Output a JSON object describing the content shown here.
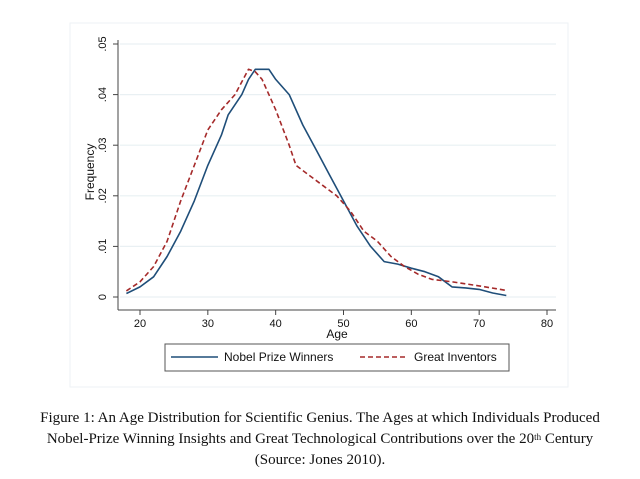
{
  "chart_data": {
    "type": "line",
    "title": "",
    "xlabel": "Age",
    "ylabel": "Frequency",
    "xlim": [
      18,
      80
    ],
    "ylim": [
      0,
      0.05
    ],
    "xticks": [
      20,
      30,
      40,
      50,
      60,
      70,
      80
    ],
    "xtick_labels": [
      "20",
      "30",
      "40",
      "50",
      "60",
      "70",
      "80"
    ],
    "yticks": [
      0,
      0.01,
      0.02,
      0.03,
      0.04,
      0.05
    ],
    "ytick_labels": [
      "0",
      ".01",
      ".02",
      ".03",
      ".04",
      ".05"
    ],
    "grid": "horizontal",
    "legend_position": "bottom",
    "series": [
      {
        "name": "Nobel Prize Winners",
        "style": "solid",
        "color": "#1f4e79",
        "x": [
          18,
          20,
          22,
          24,
          26,
          28,
          30,
          32,
          33,
          35,
          36,
          37,
          39,
          40,
          42,
          44,
          46,
          48,
          50,
          52,
          54,
          56,
          58,
          60,
          62,
          64,
          66,
          68,
          70,
          72,
          74
        ],
        "y": [
          0.0007,
          0.002,
          0.004,
          0.008,
          0.013,
          0.019,
          0.026,
          0.032,
          0.036,
          0.04,
          0.043,
          0.045,
          0.045,
          0.043,
          0.04,
          0.034,
          0.029,
          0.024,
          0.019,
          0.014,
          0.01,
          0.007,
          0.0065,
          0.0057,
          0.005,
          0.004,
          0.002,
          0.0018,
          0.0015,
          0.0008,
          0.0003
        ]
      },
      {
        "name": "Great Inventors",
        "style": "dashed",
        "color": "#a52a2a",
        "x": [
          18,
          20,
          22,
          24,
          26,
          28,
          30,
          32,
          34,
          36,
          37,
          38,
          40,
          42,
          43,
          45,
          47,
          49,
          51,
          53,
          55,
          57,
          59,
          61,
          63,
          66,
          70,
          74
        ],
        "y": [
          0.0012,
          0.003,
          0.006,
          0.011,
          0.019,
          0.026,
          0.033,
          0.037,
          0.04,
          0.045,
          0.0445,
          0.043,
          0.037,
          0.03,
          0.026,
          0.024,
          0.022,
          0.02,
          0.017,
          0.013,
          0.011,
          0.008,
          0.006,
          0.0045,
          0.0035,
          0.003,
          0.0022,
          0.0013
        ]
      }
    ]
  },
  "legend": {
    "items": [
      "Nobel Prize Winners",
      "Great Inventors"
    ]
  },
  "caption": {
    "line1": "Figure 1:  An Age Distribution for Scientific Genius.  The Ages at which Individuals Produced",
    "line2_pre": "Nobel-Prize Winning Insights and Great Technological Contributions over the 20",
    "line2_sup": "th",
    "line2_post": " Century",
    "line3": "(Source: Jones 2010)."
  }
}
